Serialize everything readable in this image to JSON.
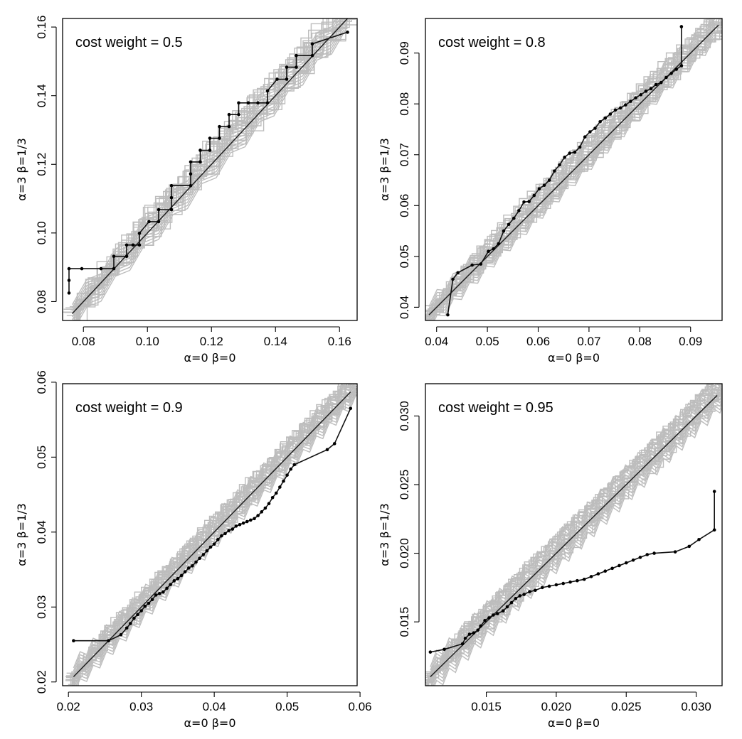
{
  "figure": {
    "colors": {
      "main": "#111111",
      "reference": "#222222",
      "envelope": "#bdbdbd"
    }
  },
  "chart_data": [
    {
      "type": "line",
      "title": "cost weight = 0.5",
      "xlabel": "α=0   β=0",
      "ylabel": "α=3   β=1/3",
      "xlim": [
        0.0735,
        0.1655
      ],
      "ylim": [
        0.0745,
        0.1625
      ],
      "xticks": [
        "0.08",
        "0.10",
        "0.12",
        "0.14",
        "0.16"
      ],
      "xtick_values": [
        0.08,
        0.1,
        0.12,
        0.14,
        0.16
      ],
      "yticks": [
        "0.08",
        "0.10",
        "0.12",
        "0.14",
        "0.16"
      ],
      "ytick_values": [
        0.08,
        0.1,
        0.12,
        0.14,
        0.16
      ],
      "reference_line": {
        "from": [
          0.0765,
          0.0765
        ],
        "to": [
          0.1625,
          0.1625
        ]
      },
      "grey_band_halfwidth": 0.004,
      "grey_band_step": 0.0045,
      "series": [
        {
          "x": [
            0.0755,
            0.0755,
            0.0755,
            0.0795,
            0.0855,
            0.0895,
            0.0895,
            0.0935,
            0.0935,
            0.0955,
            0.0975,
            0.0975,
            0.1005,
            0.1035,
            0.1035,
            0.1075,
            0.1075,
            0.1075,
            0.1135,
            0.1135,
            0.1135,
            0.1165,
            0.1165,
            0.1195,
            0.1195,
            0.1225,
            0.1225,
            0.1255,
            0.1255,
            0.1285,
            0.1285,
            0.1315,
            0.1315,
            0.1345,
            0.1375,
            0.1375,
            0.1405,
            0.1435,
            0.1435,
            0.1465,
            0.1465,
            0.1515,
            0.1515,
            0.1625
          ],
          "y": [
            0.0825,
            0.0862,
            0.0896,
            0.0896,
            0.0896,
            0.0896,
            0.0932,
            0.0932,
            0.0965,
            0.0965,
            0.0965,
            0.0999,
            0.1033,
            0.1033,
            0.1068,
            0.1068,
            0.1103,
            0.1138,
            0.1138,
            0.1172,
            0.1207,
            0.1207,
            0.1241,
            0.1241,
            0.1276,
            0.1276,
            0.131,
            0.131,
            0.1345,
            0.1345,
            0.1379,
            0.1379,
            0.1379,
            0.1379,
            0.1379,
            0.1414,
            0.1448,
            0.1448,
            0.1483,
            0.1483,
            0.1517,
            0.1517,
            0.1551,
            0.1585
          ]
        }
      ]
    },
    {
      "type": "line",
      "title": "cost weight = 0.8",
      "xlabel": "α=0   β=0",
      "ylabel": "α=3   β=1/3",
      "xlim": [
        0.0378,
        0.0962
      ],
      "ylim": [
        0.0374,
        0.0968
      ],
      "xticks": [
        "0.04",
        "0.05",
        "0.06",
        "0.07",
        "0.08",
        "0.09"
      ],
      "xtick_values": [
        0.04,
        0.05,
        0.06,
        0.07,
        0.08,
        0.09
      ],
      "yticks": [
        "0.04",
        "0.05",
        "0.06",
        "0.07",
        "0.08",
        "0.09"
      ],
      "ytick_values": [
        0.04,
        0.05,
        0.06,
        0.07,
        0.08,
        0.09
      ],
      "reference_line": {
        "from": [
          0.0385,
          0.0385
        ],
        "to": [
          0.0955,
          0.0955
        ]
      },
      "grey_band_halfwidth": 0.0025,
      "grey_band_step": 0.0016,
      "series": [
        {
          "x": [
            0.0422,
            0.0432,
            0.0442,
            0.047,
            0.0487,
            0.0502,
            0.0512,
            0.0522,
            0.0532,
            0.0542,
            0.0552,
            0.0562,
            0.0572,
            0.0582,
            0.0592,
            0.0602,
            0.0612,
            0.0622,
            0.0632,
            0.0642,
            0.0652,
            0.0662,
            0.0672,
            0.0682,
            0.0692,
            0.0702,
            0.0712,
            0.0722,
            0.0732,
            0.0742,
            0.0752,
            0.0762,
            0.0772,
            0.0782,
            0.0792,
            0.0802,
            0.0812,
            0.0822,
            0.0832,
            0.0842,
            0.0852,
            0.0862,
            0.0872,
            0.0882,
            0.0882
          ],
          "y": [
            0.0385,
            0.0455,
            0.0468,
            0.0483,
            0.0485,
            0.051,
            0.0515,
            0.0525,
            0.055,
            0.0563,
            0.0575,
            0.059,
            0.0607,
            0.0608,
            0.062,
            0.0633,
            0.064,
            0.065,
            0.0668,
            0.068,
            0.0695,
            0.0703,
            0.0705,
            0.0715,
            0.0735,
            0.0745,
            0.0752,
            0.0765,
            0.0772,
            0.078,
            0.0788,
            0.0792,
            0.0798,
            0.0805,
            0.0812,
            0.0818,
            0.0825,
            0.083,
            0.0838,
            0.0842,
            0.0852,
            0.086,
            0.0868,
            0.0875,
            0.0952
          ]
        }
      ]
    },
    {
      "type": "line",
      "title": "cost weight = 0.9",
      "xlabel": "α=0   β=0",
      "ylabel": "α=3   β=1/3",
      "xlim": [
        0.0192,
        0.0596
      ],
      "ylim": [
        0.0195,
        0.0598
      ],
      "xticks": [
        "0.02",
        "0.03",
        "0.04",
        "0.05",
        "0.06"
      ],
      "xtick_values": [
        0.02,
        0.03,
        0.04,
        0.05,
        0.06
      ],
      "yticks": [
        "0.02",
        "0.03",
        "0.04",
        "0.05",
        "0.06"
      ],
      "ytick_values": [
        0.02,
        0.03,
        0.04,
        0.05,
        0.06
      ],
      "reference_line": {
        "from": [
          0.0207,
          0.0207
        ],
        "to": [
          0.0587,
          0.0587
        ]
      },
      "grey_band_halfwidth": 0.0018,
      "grey_band_step": 0.0009,
      "series": [
        {
          "x": [
            0.0207,
            0.0255,
            0.0272,
            0.028,
            0.0285,
            0.029,
            0.0295,
            0.03,
            0.0305,
            0.031,
            0.0315,
            0.032,
            0.0325,
            0.033,
            0.0335,
            0.034,
            0.0345,
            0.035,
            0.0355,
            0.036,
            0.0365,
            0.037,
            0.0375,
            0.038,
            0.0385,
            0.039,
            0.0395,
            0.04,
            0.0405,
            0.041,
            0.0415,
            0.042,
            0.0425,
            0.043,
            0.0435,
            0.044,
            0.0445,
            0.045,
            0.0455,
            0.046,
            0.0465,
            0.047,
            0.0475,
            0.048,
            0.0485,
            0.049,
            0.0495,
            0.05,
            0.0505,
            0.051,
            0.0555,
            0.0565,
            0.0587
          ],
          "y": [
            0.0255,
            0.0255,
            0.0263,
            0.0272,
            0.0278,
            0.0285,
            0.029,
            0.0295,
            0.0301,
            0.0305,
            0.031,
            0.0316,
            0.0318,
            0.032,
            0.0325,
            0.033,
            0.0335,
            0.0338,
            0.0342,
            0.0347,
            0.0352,
            0.0355,
            0.036,
            0.0365,
            0.037,
            0.0375,
            0.038,
            0.0384,
            0.039,
            0.0395,
            0.0398,
            0.0402,
            0.0404,
            0.0408,
            0.041,
            0.0412,
            0.0414,
            0.0416,
            0.0418,
            0.0422,
            0.0427,
            0.0432,
            0.0438,
            0.0446,
            0.0452,
            0.046,
            0.0468,
            0.0476,
            0.0484,
            0.049,
            0.051,
            0.0518,
            0.0565
          ]
        }
      ]
    },
    {
      "type": "line",
      "title": "cost weight = 0.95",
      "xlabel": "α=0   β=0",
      "ylabel": "α=3   β=1/3",
      "xlim": [
        0.01065,
        0.03185
      ],
      "ylim": [
        0.01035,
        0.03235
      ],
      "xticks": [
        "0.015",
        "0.020",
        "0.025",
        "0.030"
      ],
      "xtick_values": [
        0.015,
        0.02,
        0.025,
        0.03
      ],
      "yticks": [
        "0.015",
        "0.020",
        "0.025",
        "0.030"
      ],
      "ytick_values": [
        0.015,
        0.02,
        0.025,
        0.03
      ],
      "reference_line": {
        "from": [
          0.011,
          0.011
        ],
        "to": [
          0.0315,
          0.0315
        ]
      },
      "grey_band_halfwidth": 0.0011,
      "grey_band_step": 0.00045,
      "series": [
        {
          "x": [
            0.011,
            0.012,
            0.0133,
            0.0135,
            0.0138,
            0.0141,
            0.0144,
            0.0146,
            0.0149,
            0.0152,
            0.0155,
            0.0158,
            0.0162,
            0.0165,
            0.0168,
            0.0171,
            0.0174,
            0.0177,
            0.0181,
            0.0185,
            0.019,
            0.0195,
            0.02,
            0.0205,
            0.021,
            0.0215,
            0.022,
            0.0225,
            0.023,
            0.0235,
            0.024,
            0.0245,
            0.025,
            0.0255,
            0.026,
            0.0265,
            0.027,
            0.0285,
            0.0295,
            0.0302,
            0.0313,
            0.0313
          ],
          "y": [
            0.0128,
            0.013,
            0.0134,
            0.0138,
            0.0141,
            0.0142,
            0.0144,
            0.0147,
            0.0151,
            0.0153,
            0.0155,
            0.0156,
            0.0158,
            0.0161,
            0.0164,
            0.0167,
            0.0169,
            0.017,
            0.0172,
            0.0173,
            0.0175,
            0.0176,
            0.0177,
            0.0178,
            0.0179,
            0.018,
            0.0181,
            0.0183,
            0.0185,
            0.0187,
            0.0189,
            0.0191,
            0.0193,
            0.0195,
            0.0197,
            0.0199,
            0.02,
            0.0201,
            0.0205,
            0.021,
            0.0217,
            0.0245
          ]
        }
      ]
    }
  ]
}
